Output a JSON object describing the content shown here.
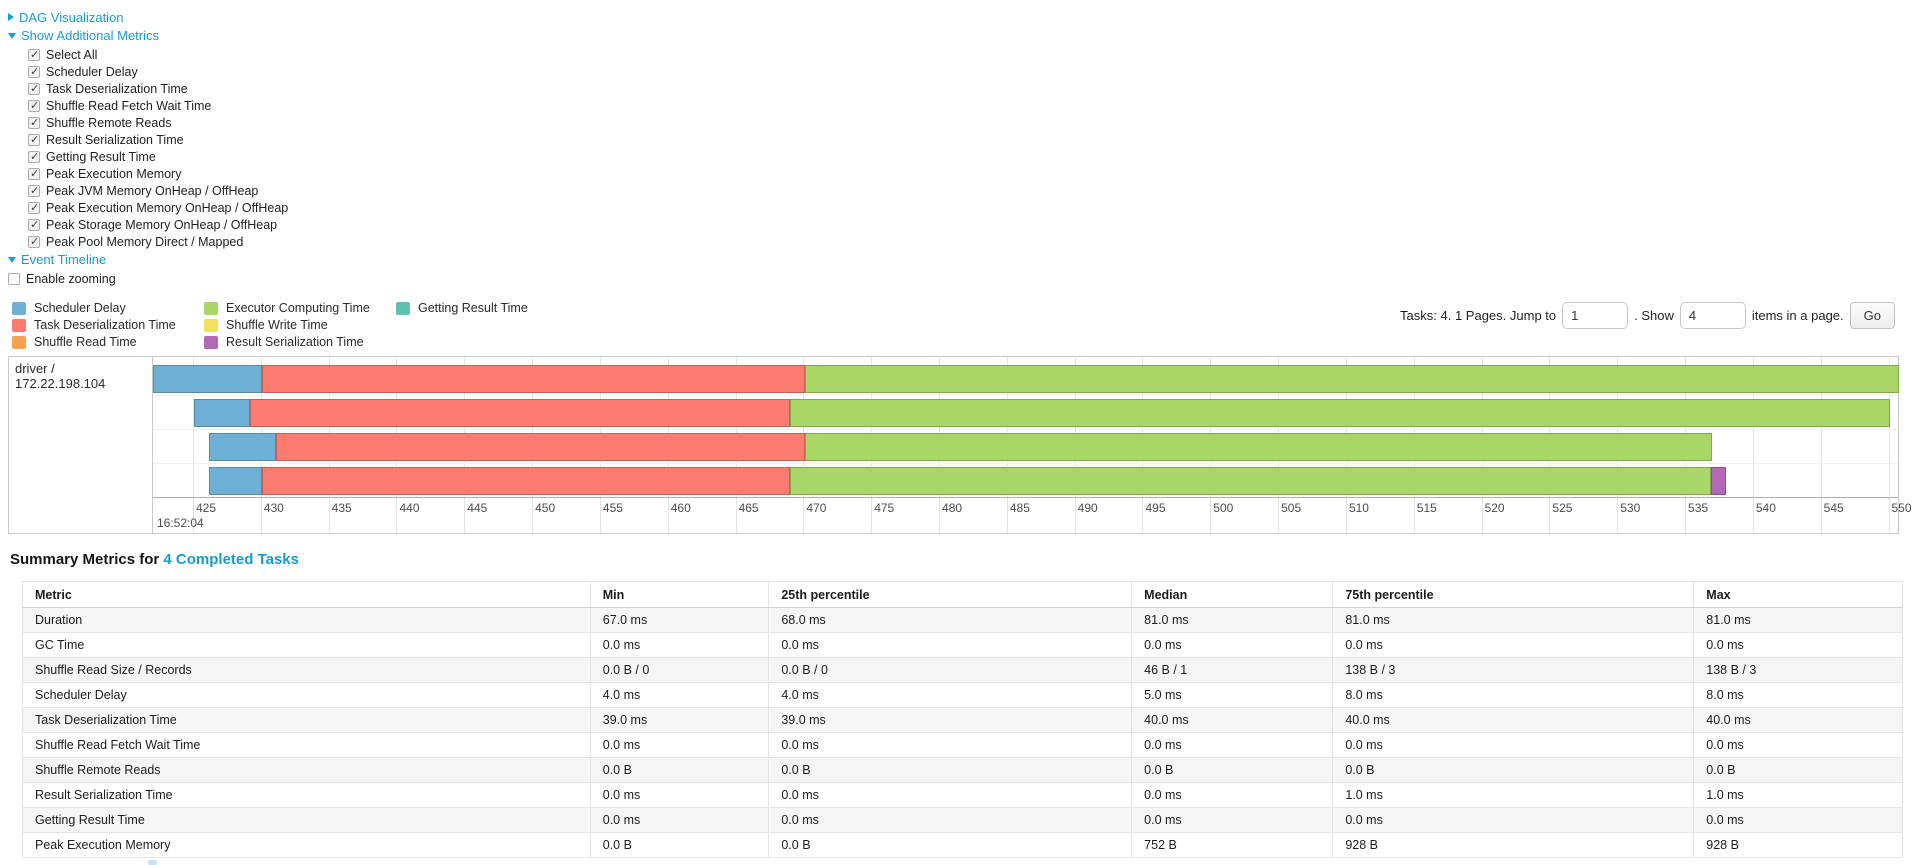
{
  "toggles": {
    "dag": {
      "label": "DAG Visualization",
      "state": "collapsed"
    },
    "metrics": {
      "label": "Show Additional Metrics",
      "state": "expanded"
    },
    "timeline": {
      "label": "Event Timeline",
      "state": "expanded"
    }
  },
  "metric_checkboxes": [
    {
      "label": "Select All",
      "checked": true
    },
    {
      "label": "Scheduler Delay",
      "checked": true
    },
    {
      "label": "Task Deserialization Time",
      "checked": true
    },
    {
      "label": "Shuffle Read Fetch Wait Time",
      "checked": true
    },
    {
      "label": "Shuffle Remote Reads",
      "checked": true
    },
    {
      "label": "Result Serialization Time",
      "checked": true
    },
    {
      "label": "Getting Result Time",
      "checked": true
    },
    {
      "label": "Peak Execution Memory",
      "checked": true
    },
    {
      "label": "Peak JVM Memory OnHeap / OffHeap",
      "checked": true
    },
    {
      "label": "Peak Execution Memory OnHeap / OffHeap",
      "checked": true
    },
    {
      "label": "Peak Storage Memory OnHeap / OffHeap",
      "checked": true
    },
    {
      "label": "Peak Pool Memory Direct / Mapped",
      "checked": true
    }
  ],
  "enable_zooming": {
    "label": "Enable zooming",
    "checked": false
  },
  "colors": {
    "scheduler_delay": "#6FB1D6",
    "task_deserialization": "#FC7D6F",
    "shuffle_read": "#F9A14F",
    "executor_computing": "#A8D767",
    "shuffle_write": "#F0E25A",
    "result_serialization": "#B268B6",
    "getting_result": "#5EC3AE",
    "link": "#169BD5"
  },
  "legend_columns": [
    [
      {
        "key": "scheduler_delay",
        "label": "Scheduler Delay"
      },
      {
        "key": "task_deserialization",
        "label": "Task Deserialization Time"
      },
      {
        "key": "shuffle_read",
        "label": "Shuffle Read Time"
      }
    ],
    [
      {
        "key": "executor_computing",
        "label": "Executor Computing Time"
      },
      {
        "key": "shuffle_write",
        "label": "Shuffle Write Time"
      },
      {
        "key": "result_serialization",
        "label": "Result Serialization Time"
      }
    ],
    [
      {
        "key": "getting_result",
        "label": "Getting Result Time"
      }
    ]
  ],
  "pagination": {
    "prefix": "Tasks: 4. 1 Pages. Jump to",
    "jump_value": "1",
    "mid": ". Show",
    "show_value": "4",
    "suffix": "items in a page.",
    "go_label": "Go"
  },
  "chart_data": {
    "type": "timeline",
    "executor_label": "driver / 172.22.198.104",
    "axis": {
      "window_start": 422.05,
      "window_end": 550.7,
      "ticks": [
        425,
        430,
        435,
        440,
        445,
        450,
        455,
        460,
        465,
        470,
        475,
        480,
        485,
        490,
        495,
        500,
        505,
        510,
        515,
        520,
        525,
        530,
        535,
        540,
        545,
        550
      ],
      "major_label": "16:52:04"
    },
    "tasks": [
      {
        "segments": [
          {
            "key": "scheduler_delay",
            "start": 422.05,
            "end": 430.1
          },
          {
            "key": "task_deserialization",
            "start": 430.1,
            "end": 470.1
          },
          {
            "key": "executor_computing",
            "start": 470.1,
            "end": 550.8
          }
        ]
      },
      {
        "segments": [
          {
            "key": "scheduler_delay",
            "start": 425.1,
            "end": 429.2
          },
          {
            "key": "task_deserialization",
            "start": 429.2,
            "end": 469.0
          },
          {
            "key": "executor_computing",
            "start": 469.0,
            "end": 550.1
          }
        ]
      },
      {
        "segments": [
          {
            "key": "scheduler_delay",
            "start": 426.2,
            "end": 431.1
          },
          {
            "key": "task_deserialization",
            "start": 431.1,
            "end": 470.1
          },
          {
            "key": "executor_computing",
            "start": 470.1,
            "end": 537.0
          }
        ]
      },
      {
        "segments": [
          {
            "key": "scheduler_delay",
            "start": 426.2,
            "end": 430.1
          },
          {
            "key": "task_deserialization",
            "start": 430.1,
            "end": 469.0
          },
          {
            "key": "executor_computing",
            "start": 469.0,
            "end": 536.9
          },
          {
            "key": "result_serialization",
            "start": 536.9,
            "end": 538.0
          }
        ]
      }
    ]
  },
  "summary": {
    "title_prefix": "Summary Metrics for ",
    "title_link": "4 Completed Tasks",
    "headers": [
      "Metric",
      "Min",
      "25th percentile",
      "Median",
      "75th percentile",
      "Max"
    ],
    "rows": [
      {
        "metric": "Duration",
        "values": [
          "67.0 ms",
          "68.0 ms",
          "81.0 ms",
          "81.0 ms",
          "81.0 ms"
        ]
      },
      {
        "metric": "GC Time",
        "values": [
          "0.0 ms",
          "0.0 ms",
          "0.0 ms",
          "0.0 ms",
          "0.0 ms"
        ]
      },
      {
        "metric": "Shuffle Read Size / Records",
        "values": [
          "0.0 B / 0",
          "0.0 B / 0",
          "46 B / 1",
          "138 B / 3",
          "138 B / 3"
        ]
      },
      {
        "metric": "Scheduler Delay",
        "values": [
          "4.0 ms",
          "4.0 ms",
          "5.0 ms",
          "8.0 ms",
          "8.0 ms"
        ]
      },
      {
        "metric": "Task Deserialization Time",
        "values": [
          "39.0 ms",
          "39.0 ms",
          "40.0 ms",
          "40.0 ms",
          "40.0 ms"
        ]
      },
      {
        "metric": "Shuffle Read Fetch Wait Time",
        "values": [
          "0.0 ms",
          "0.0 ms",
          "0.0 ms",
          "0.0 ms",
          "0.0 ms"
        ]
      },
      {
        "metric": "Shuffle Remote Reads",
        "values": [
          "0.0 B",
          "0.0 B",
          "0.0 B",
          "0.0 B",
          "0.0 B"
        ]
      },
      {
        "metric": "Result Serialization Time",
        "values": [
          "0.0 ms",
          "0.0 ms",
          "0.0 ms",
          "1.0 ms",
          "1.0 ms"
        ]
      },
      {
        "metric": "Getting Result Time",
        "values": [
          "0.0 ms",
          "0.0 ms",
          "0.0 ms",
          "0.0 ms",
          "0.0 ms"
        ]
      },
      {
        "metric": "Peak Execution Memory",
        "values": [
          "0.0 B",
          "0.0 B",
          "752 B",
          "928 B",
          "928 B"
        ]
      }
    ]
  }
}
